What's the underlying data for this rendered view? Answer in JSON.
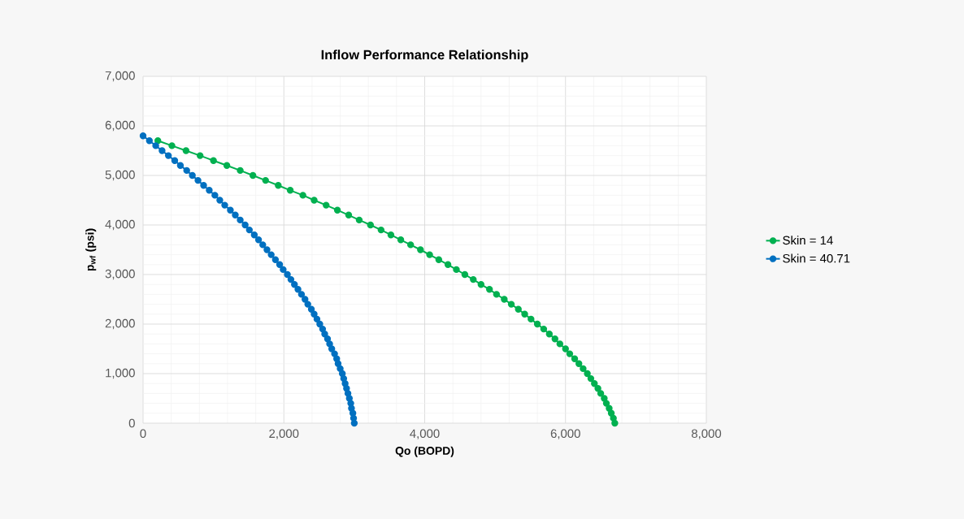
{
  "chart_data": {
    "type": "line",
    "title": "Inflow Performance Relationship",
    "xlabel": "Qo (BOPD)",
    "ylabel": "p$_{wf}$ (psi)",
    "xlim": [
      0,
      8000
    ],
    "ylim": [
      0,
      7000
    ],
    "xticks": [
      0,
      {
        "value": 2000,
        "label": "2,000"
      },
      {
        "value": 4000,
        "label": "4,000"
      },
      {
        "value": 6000,
        "label": "6,000"
      },
      {
        "value": 8000,
        "label": "8,000"
      }
    ],
    "yticks": [
      0,
      {
        "value": 1000,
        "label": "1,000"
      },
      {
        "value": 2000,
        "label": "2,000"
      },
      {
        "value": 3000,
        "label": "3,000"
      },
      {
        "value": 4000,
        "label": "4,000"
      },
      {
        "value": 5000,
        "label": "5,000"
      },
      {
        "value": 6000,
        "label": "6,000"
      },
      {
        "value": 7000,
        "label": "7,000"
      }
    ],
    "grid": true,
    "legend": "right",
    "marker": "circle",
    "line_style": "solid",
    "series": [
      {
        "name": "Skin = 14",
        "color": "#00b050",
        "x": [
          null,
          210,
          410,
          610,
          810,
          1000,
          1190,
          1380,
          1560,
          1740,
          1920,
          2090,
          2270,
          2430,
          2600,
          2760,
          2920,
          3070,
          3230,
          3380,
          3520,
          3660,
          3800,
          3940,
          4070,
          4200,
          4330,
          4450,
          4570,
          4690,
          4800,
          4920,
          5020,
          5130,
          5230,
          5330,
          5420,
          5510,
          5600,
          5690,
          5770,
          5850,
          5920,
          6000,
          6060,
          6130,
          6190,
          6250,
          6310,
          6360,
          6410,
          6460,
          6500,
          6550,
          6580,
          6620,
          6650,
          6680,
          6700
        ],
        "values": [
          null,
          5700,
          5600,
          5500,
          5400,
          5300,
          5200,
          5100,
          5000,
          4900,
          4800,
          4700,
          4600,
          4500,
          4400,
          4300,
          4200,
          4100,
          4000,
          3900,
          3800,
          3700,
          3600,
          3500,
          3400,
          3300,
          3200,
          3100,
          3000,
          2900,
          2800,
          2700,
          2600,
          2500,
          2400,
          2300,
          2200,
          2100,
          2000,
          1900,
          1800,
          1700,
          1600,
          1500,
          1400,
          1300,
          1200,
          1100,
          1000,
          900,
          800,
          700,
          600,
          500,
          400,
          300,
          200,
          100,
          0
        ]
      },
      {
        "name": "Skin = 40.71",
        "color": "#0070c0",
        "x": [
          0,
          90,
          180,
          270,
          360,
          450,
          530,
          620,
          700,
          780,
          860,
          940,
          1020,
          1090,
          1160,
          1240,
          1310,
          1380,
          1450,
          1510,
          1580,
          1640,
          1700,
          1760,
          1820,
          1880,
          1940,
          1990,
          2050,
          2100,
          2150,
          2200,
          2250,
          2300,
          2340,
          2390,
          2430,
          2470,
          2510,
          2550,
          2580,
          2620,
          2650,
          2680,
          2720,
          2750,
          2770,
          2800,
          2830,
          2850,
          2870,
          2890,
          2910,
          2930,
          2950,
          2960,
          2980,
          2990,
          3000
        ],
        "values": [
          5800,
          5700,
          5600,
          5500,
          5400,
          5300,
          5200,
          5100,
          5000,
          4900,
          4800,
          4700,
          4600,
          4500,
          4400,
          4300,
          4200,
          4100,
          4000,
          3900,
          3800,
          3700,
          3600,
          3500,
          3400,
          3300,
          3200,
          3100,
          3000,
          2900,
          2800,
          2700,
          2600,
          2500,
          2400,
          2300,
          2200,
          2100,
          2000,
          1900,
          1800,
          1700,
          1600,
          1500,
          1400,
          1300,
          1200,
          1100,
          1000,
          900,
          800,
          700,
          600,
          500,
          400,
          300,
          200,
          100,
          0
        ]
      }
    ]
  }
}
